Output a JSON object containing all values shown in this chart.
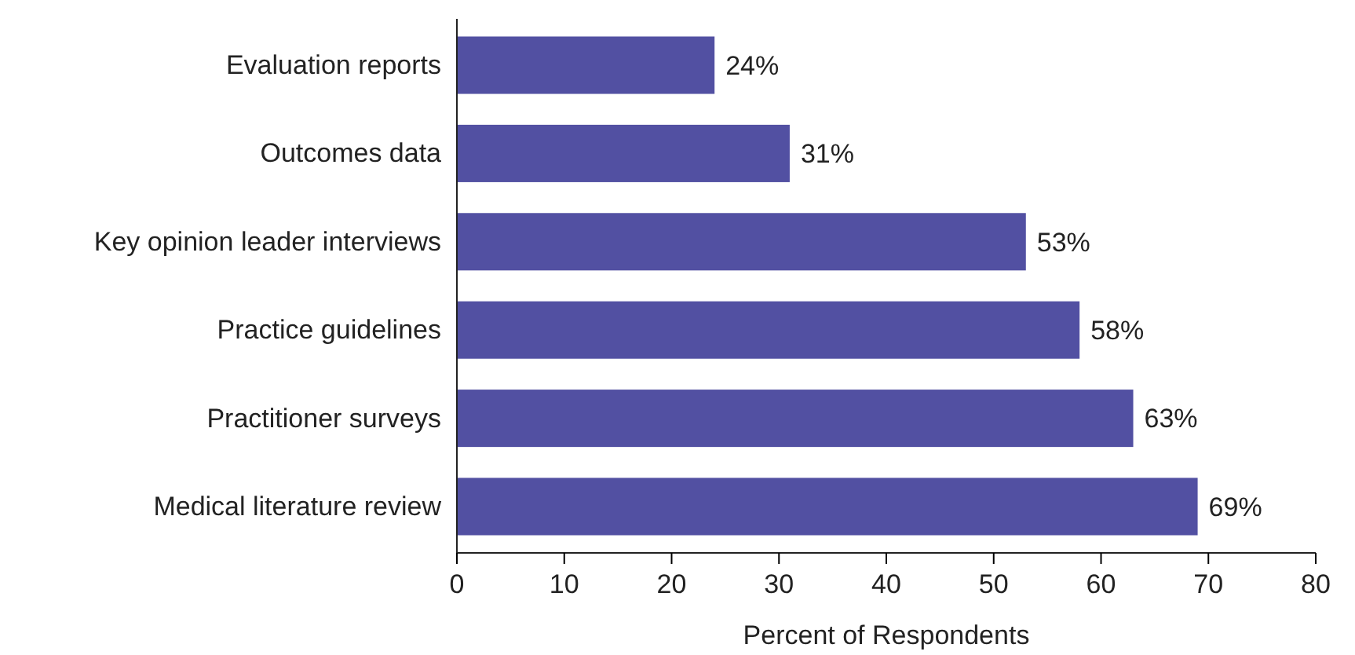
{
  "chart_data": {
    "type": "bar",
    "orientation": "horizontal",
    "xlabel": "Percent of Respondents",
    "categories": [
      "Evaluation reports",
      "Outcomes data",
      "Key opinion leader interviews",
      "Practice guidelines",
      "Practitioner surveys",
      "Medical literature review"
    ],
    "values": [
      24,
      31,
      53,
      58,
      63,
      69
    ],
    "value_labels": [
      "24%",
      "31%",
      "53%",
      "58%",
      "63%",
      "69%"
    ],
    "color": "#5250a2",
    "xlim": [
      0,
      80
    ],
    "xticks": [
      0,
      10,
      20,
      30,
      40,
      50,
      60,
      70,
      80
    ],
    "grid": false
  }
}
